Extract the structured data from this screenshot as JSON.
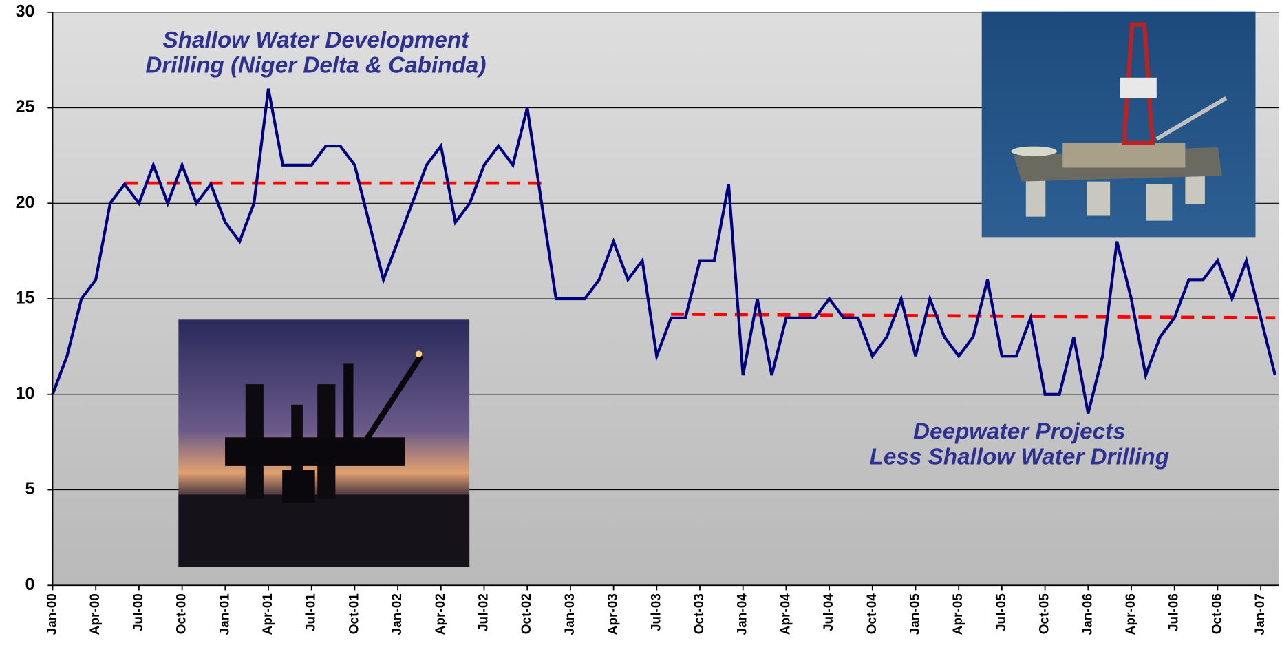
{
  "chart_data": {
    "type": "line",
    "categories": [
      "Jan-00",
      null,
      null,
      "Apr-00",
      null,
      null,
      "Jul-00",
      null,
      null,
      "Oct-00",
      null,
      null,
      "Jan-01",
      null,
      null,
      "Apr-01",
      null,
      null,
      "Jul-01",
      null,
      null,
      "Oct-01",
      null,
      null,
      "Jan-02",
      null,
      null,
      "Apr-02",
      null,
      null,
      "Jul-02",
      null,
      null,
      "Oct-02",
      null,
      null,
      "Jan-03",
      null,
      null,
      "Apr-03",
      null,
      null,
      "Jul-03",
      null,
      null,
      "Oct-03",
      null,
      null,
      "Jan-04",
      null,
      null,
      "Apr-04",
      null,
      null,
      "Jul-04",
      null,
      null,
      "Oct-04",
      null,
      null,
      "Jan-05",
      null,
      null,
      "Apr-05",
      null,
      null,
      "Jul-05",
      null,
      null,
      "Oct-05",
      null,
      null,
      "Jan-06",
      null,
      null,
      "Apr-06",
      null,
      null,
      "Jul-06",
      null,
      null,
      "Oct-06",
      null,
      null,
      "Jan-07",
      null
    ],
    "series": [
      {
        "color": "#000080",
        "values": [
          10,
          12,
          15,
          16,
          20,
          21,
          20,
          22,
          20,
          22,
          20,
          21,
          19,
          18,
          20,
          26,
          22,
          22,
          22,
          23,
          23,
          22,
          19,
          16,
          18,
          20,
          22,
          23,
          19,
          20,
          22,
          23,
          22,
          25,
          20,
          15,
          15,
          15,
          16,
          18,
          16,
          17,
          12,
          14,
          14,
          17,
          17,
          21,
          11,
          15,
          11,
          14,
          14,
          14,
          15,
          14,
          14,
          12,
          13,
          15,
          12,
          15,
          13,
          12,
          13,
          16,
          12,
          12,
          14,
          10,
          10,
          13,
          9,
          12,
          18,
          15,
          11,
          13,
          14,
          16,
          16,
          17,
          15,
          17,
          14,
          11
        ]
      }
    ],
    "reference_lines": [
      {
        "color": "#ff0000",
        "x_index": [
          5,
          34
        ],
        "values": [
          21.05,
          21.05
        ]
      },
      {
        "color": "#ff0000",
        "x_index": [
          43,
          85
        ],
        "values": [
          14.2,
          14.0
        ]
      }
    ],
    "annotations": [
      [
        "Shallow Water Development",
        "Drilling (Niger Delta & Cabinda)"
      ],
      [
        "Deepwater Projects",
        "Less Shallow Water Drilling"
      ]
    ],
    "ylim": [
      0,
      30
    ],
    "yticks": [
      0,
      5,
      10,
      15,
      20,
      25,
      30
    ],
    "grid": true
  }
}
